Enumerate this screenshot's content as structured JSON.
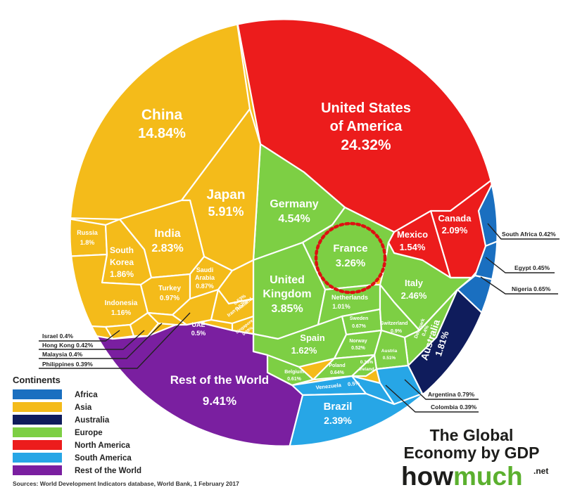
{
  "title_line1": "The Global",
  "title_line2": "Economy by GDP",
  "brand": {
    "part1": "how",
    "part2": "much",
    "suffix": ".net"
  },
  "source": "Sources: World Development Indicators database, World Bank, 1 February 2017",
  "colors": {
    "Africa": "#1a6fc0",
    "Asia": "#f4bb1a",
    "Australia": "#0f1c5c",
    "Europe": "#7dcf44",
    "North America": "#ec1c1c",
    "South America": "#27a6e6",
    "Rest of the World": "#7a1fa0",
    "highlight": "#dd1111"
  },
  "legend": {
    "title": "Continents",
    "items": [
      "Africa",
      "Asia",
      "Australia",
      "Europe",
      "North America",
      "South America",
      "Rest of the World"
    ]
  },
  "countries": {
    "usa": {
      "line1": "United States",
      "line2": "of America",
      "value": "24.32%"
    },
    "china": {
      "name": "China",
      "value": "14.84%"
    },
    "japan": {
      "name": "Japan",
      "value": "5.91%"
    },
    "germany": {
      "name": "Germany",
      "value": "4.54%"
    },
    "uk": {
      "line1": "United",
      "line2": "Kingdom",
      "value": "3.85%"
    },
    "france": {
      "name": "France",
      "value": "3.26%"
    },
    "india": {
      "name": "India",
      "value": "2.83%"
    },
    "italy": {
      "name": "Italy",
      "value": "2.46%"
    },
    "brazil": {
      "name": "Brazil",
      "value": "2.39%"
    },
    "canada": {
      "name": "Canada",
      "value": "2.09%"
    },
    "south_korea": {
      "line1": "South",
      "line2": "Korea",
      "value": "1.86%"
    },
    "russia": {
      "name": "Russia",
      "value": "1.8%"
    },
    "australia": {
      "name": "Australia",
      "value": "1.81%"
    },
    "spain": {
      "name": "Spain",
      "value": "1.62%"
    },
    "mexico": {
      "name": "Mexico",
      "value": "1.54%"
    },
    "indonesia": {
      "name": "Indonesia",
      "value": "1.16%"
    },
    "turkey": {
      "name": "Turkey",
      "value": "0.97%"
    },
    "netherlands": {
      "name": "Netherlands",
      "value": "1.01%"
    },
    "saudi": {
      "line1": "Saudi",
      "line2": "Arabia",
      "value": "0.87%"
    },
    "switzerland": {
      "name": "Switzerland",
      "value": "0.9%"
    },
    "sweden": {
      "name": "Sweden",
      "value": "0.67%"
    },
    "norway": {
      "name": "Norway",
      "value": "0.52%"
    },
    "poland": {
      "name": "Poland",
      "value": "0.64%"
    },
    "belgium": {
      "name": "Belgium",
      "value": "0.61%"
    },
    "austria": {
      "name": "Austria",
      "value": "0.51%"
    },
    "denmark": {
      "name": "Denmark",
      "value": "0.4%"
    },
    "ireland": {
      "name": "Ireland",
      "value": "0.38%"
    },
    "uae": {
      "name": "UAE",
      "value": "0.5%"
    },
    "iran": {
      "name": "Iran",
      "value": "0.57%"
    },
    "thailand": {
      "name": "Thailand",
      "value": "0.53%"
    },
    "singapore": {
      "name": "Singapore",
      "value": "0.39%"
    },
    "venezuela": {
      "name": "Venezuela",
      "value": "0.5%"
    },
    "rest": {
      "name": "Rest of the World",
      "value": "9.41%"
    }
  },
  "callouts": {
    "south_africa": "South Africa 0.42%",
    "egypt": "Egypt 0.45%",
    "nigeria": "Nigeria 0.65%",
    "israel": "Israel 0.4%",
    "hong_kong": "Hong Kong 0.42%",
    "malaysia": "Malaysia 0.4%",
    "philippines": "Philippines 0.39%",
    "argentina": "Argentina 0.79%",
    "colombia": "Colombia 0.39%"
  }
}
